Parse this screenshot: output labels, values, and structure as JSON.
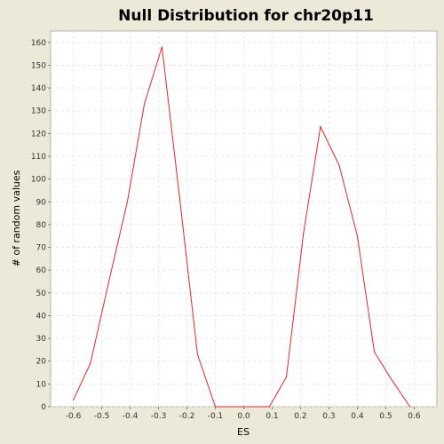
{
  "chart_data": {
    "type": "line",
    "title": "Null Distribution for chr20p11",
    "xlabel": "ES",
    "ylabel": "# of random values",
    "xlim": [
      -0.68,
      0.68
    ],
    "ylim": [
      0,
      165
    ],
    "x_ticks": [
      "-0.6",
      "-0.5",
      "-0.4",
      "-0.3",
      "-0.2",
      "-0.1",
      "0.0",
      "0.1",
      "0.2",
      "0.3",
      "0.4",
      "0.5",
      "0.6"
    ],
    "y_ticks": [
      "0",
      "10",
      "20",
      "30",
      "40",
      "50",
      "60",
      "70",
      "80",
      "90",
      "100",
      "110",
      "120",
      "130",
      "140",
      "150",
      "160"
    ],
    "grid": true,
    "series": [
      {
        "color": "#e8242a",
        "x": [
          -0.6,
          -0.54,
          -0.475,
          -0.41,
          -0.35,
          -0.288,
          -0.226,
          -0.163,
          -0.1,
          0.0,
          0.09,
          0.15,
          0.21,
          0.27,
          0.336,
          0.4,
          0.46,
          0.52,
          0.585
        ],
        "y": [
          3,
          19,
          55,
          90,
          133,
          158,
          92,
          23,
          0,
          0,
          0,
          13,
          76,
          123,
          106,
          75,
          24,
          12,
          0
        ]
      }
    ]
  }
}
